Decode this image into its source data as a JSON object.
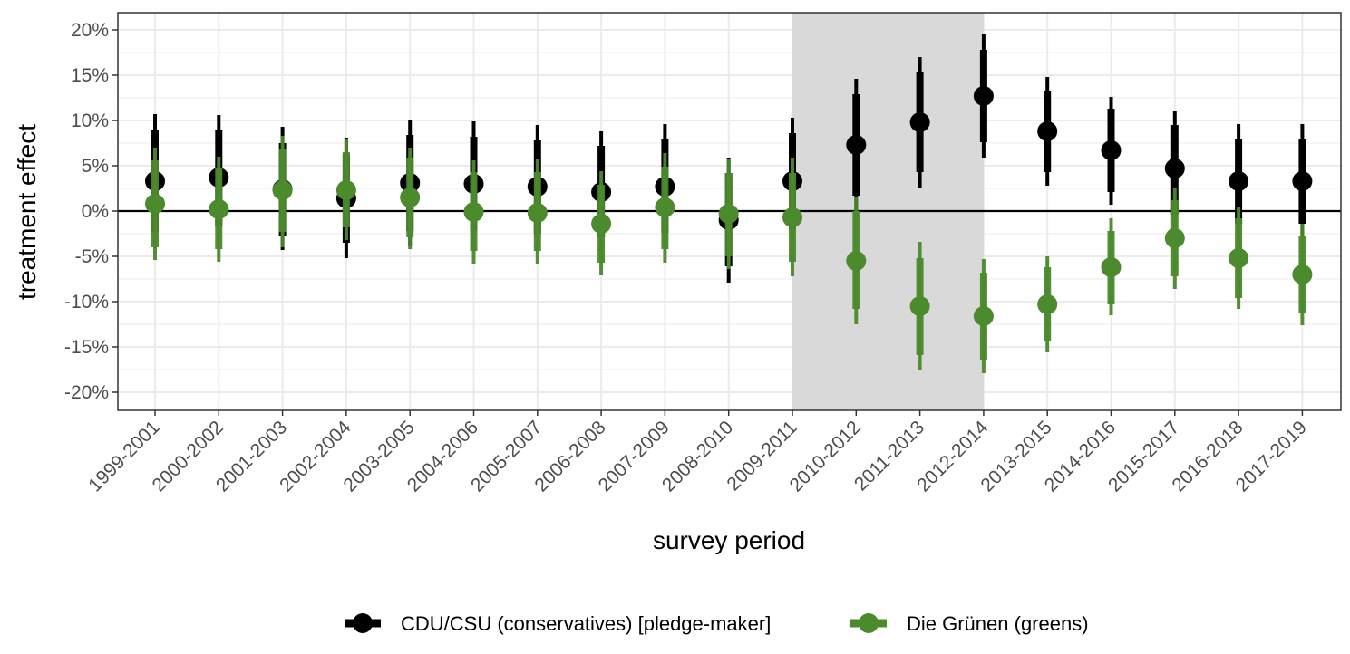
{
  "chart_data": {
    "type": "scatter",
    "subtype": "pointrange",
    "xlabel": "survey period",
    "ylabel": "treatment effect",
    "categories": [
      "1999-2001",
      "2000-2002",
      "2001-2003",
      "2002-2004",
      "2003-2005",
      "2004-2006",
      "2005-2007",
      "2006-2008",
      "2007-2009",
      "2008-2010",
      "2009-2011",
      "2010-2012",
      "2011-2013",
      "2012-2014",
      "2013-2015",
      "2014-2016",
      "2015-2017",
      "2016-2018",
      "2017-2019"
    ],
    "ylim": [
      -22,
      22
    ],
    "yticks": [
      -20,
      -15,
      -10,
      -5,
      0,
      5,
      10,
      15,
      20
    ],
    "ytick_labels": [
      "-20%",
      "-15%",
      "-10%",
      "-5%",
      "0%",
      "5%",
      "10%",
      "15%",
      "20%"
    ],
    "grid": true,
    "reference_line": 0,
    "shaded_region": {
      "from": "2009-2011",
      "to": "2012-2014",
      "color": "#d9d9d9"
    },
    "legend_position": "bottom",
    "series": [
      {
        "name": "CDU/CSU (conservatives) [pledge-maker]",
        "color": "#000000",
        "estimate": [
          3.3,
          3.7,
          2.4,
          1.4,
          3.1,
          3.0,
          2.7,
          2.1,
          2.7,
          -1.0,
          3.3,
          7.3,
          9.8,
          12.7,
          8.8,
          6.7,
          4.7,
          3.3,
          3.3
        ],
        "ci_inner_low": [
          -2.3,
          -1.6,
          -2.7,
          -3.5,
          -2.2,
          -2.1,
          -2.5,
          -2.9,
          -2.4,
          -6.1,
          -2.0,
          1.7,
          4.3,
          7.6,
          4.3,
          2.1,
          -0.4,
          -1.4,
          -1.4
        ],
        "ci_inner_high": [
          8.9,
          9.0,
          7.5,
          6.3,
          8.4,
          8.2,
          7.8,
          7.2,
          7.9,
          4.2,
          8.6,
          12.9,
          15.3,
          17.8,
          13.3,
          11.3,
          9.5,
          8.0,
          8.0
        ],
        "ci_outer_low": [
          -4.1,
          -3.3,
          -4.3,
          -5.2,
          -3.9,
          -3.8,
          -4.1,
          -4.6,
          -4.1,
          -7.9,
          -3.7,
          0.0,
          2.6,
          5.9,
          2.8,
          0.7,
          -1.8,
          -3.0,
          -3.0
        ],
        "ci_outer_high": [
          10.7,
          10.6,
          9.3,
          8.1,
          10.0,
          9.9,
          9.5,
          8.8,
          9.6,
          5.9,
          10.3,
          14.6,
          17.0,
          19.5,
          14.8,
          12.6,
          11.0,
          9.6,
          9.6
        ]
      },
      {
        "name": "Die Grünen (greens)",
        "color": "#4b8a2d",
        "estimate": [
          0.8,
          0.2,
          2.3,
          2.3,
          1.5,
          -0.1,
          -0.2,
          -1.4,
          0.4,
          -0.3,
          -0.7,
          -5.5,
          -10.5,
          -11.6,
          -10.3,
          -6.2,
          -3.0,
          -5.2,
          -7.0
        ],
        "ci_inner_low": [
          -4.0,
          -4.2,
          -2.3,
          -1.8,
          -2.9,
          -4.4,
          -4.4,
          -5.7,
          -4.2,
          -5.0,
          -5.6,
          -10.8,
          -15.9,
          -16.4,
          -14.4,
          -10.3,
          -7.2,
          -9.6,
          -11.3
        ],
        "ci_inner_high": [
          5.6,
          4.7,
          6.9,
          6.5,
          5.9,
          4.3,
          4.3,
          2.9,
          4.9,
          4.2,
          4.2,
          0.0,
          -5.2,
          -6.8,
          -6.2,
          -2.2,
          1.2,
          -0.8,
          -2.7
        ],
        "ci_outer_low": [
          -5.4,
          -5.6,
          -4.0,
          -3.2,
          -4.2,
          -5.8,
          -5.9,
          -7.1,
          -5.7,
          -6.4,
          -7.2,
          -12.5,
          -17.6,
          -17.9,
          -15.6,
          -11.5,
          -8.6,
          -10.8,
          -12.6
        ],
        "ci_outer_high": [
          7.0,
          6.0,
          8.3,
          8.0,
          7.0,
          5.6,
          5.8,
          4.4,
          6.4,
          5.8,
          5.9,
          1.6,
          -3.4,
          -5.3,
          -5.0,
          -0.8,
          2.5,
          0.4,
          -1.4
        ]
      }
    ]
  }
}
